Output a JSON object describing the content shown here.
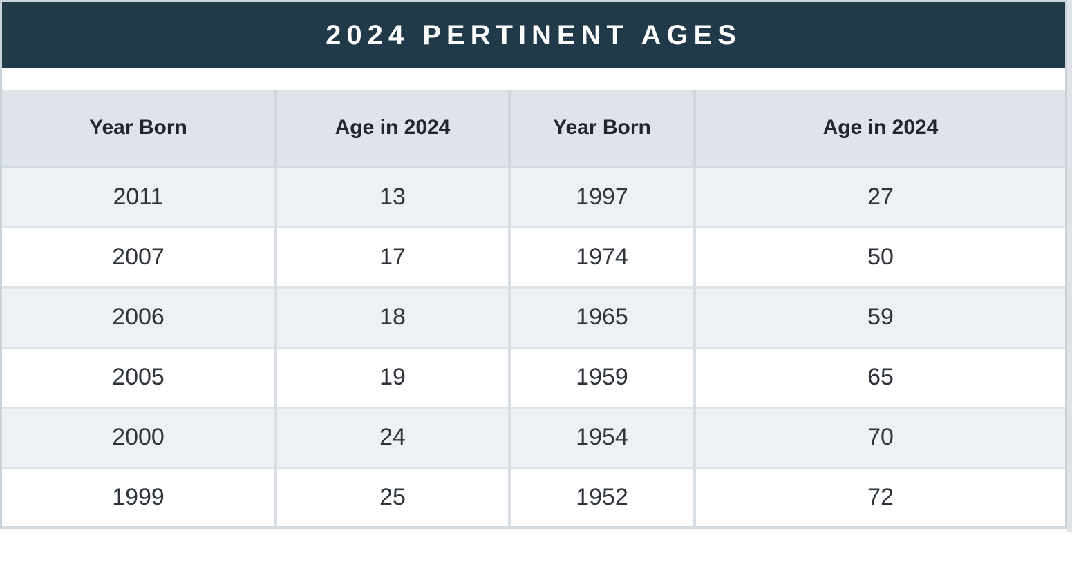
{
  "banner": {
    "title": "2024 PERTINENT AGES",
    "background_color": "#213a49",
    "text_color": "#ffffff"
  },
  "table": {
    "headers": [
      "Year Born",
      "Age in 2024",
      "Year Born",
      "Age in 2024"
    ],
    "rows": [
      [
        "2011",
        "13",
        "1997",
        "27"
      ],
      [
        "2007",
        "17",
        "1974",
        "50"
      ],
      [
        "2006",
        "18",
        "1965",
        "59"
      ],
      [
        "2005",
        "19",
        "1959",
        "65"
      ],
      [
        "2000",
        "24",
        "1954",
        "70"
      ],
      [
        "1999",
        "25",
        "1952",
        "72"
      ]
    ]
  },
  "colors": {
    "header_row_bg": "#dee4ea",
    "shaded_row_bg": "#edf1f5",
    "plain_row_bg": "#ffffff",
    "grid_line": "#d8dee3",
    "outer_border": "#c9d2d9"
  }
}
